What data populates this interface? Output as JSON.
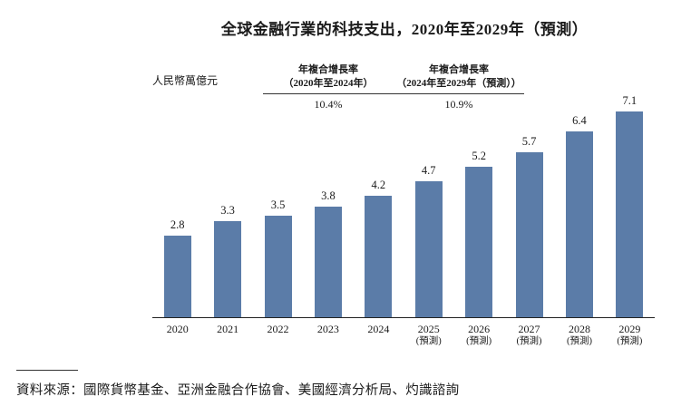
{
  "title": "全球金融行業的科技支出，2020年至2029年（預測）",
  "y_axis_unit": "人民幣萬億元",
  "cagr_annotations": [
    {
      "line1": "年複合增長率",
      "line2": "（2020年至2024年）",
      "value": "10.4%"
    },
    {
      "line1": "年複合增長率",
      "line2": "（2024年至2029年（預測））",
      "value": "10.9%"
    }
  ],
  "source_note": "資料來源：國際貨幣基金、亞洲金融合作協會、美國經濟分析局、灼識諮詢",
  "chart_data": {
    "type": "bar",
    "title": "全球金融行業的科技支出，2020年至2029年（預測）",
    "ylabel": "人民幣萬億元",
    "categories": [
      "2020",
      "2021",
      "2022",
      "2023",
      "2024",
      "2025",
      "2026",
      "2027",
      "2028",
      "2029"
    ],
    "category_sublabels": [
      "",
      "",
      "",
      "",
      "",
      "(預測)",
      "(預測)",
      "(預測)",
      "(預測)",
      "(預測)"
    ],
    "values": [
      2.8,
      3.3,
      3.5,
      3.8,
      4.2,
      4.7,
      5.2,
      5.7,
      6.4,
      7.1
    ],
    "ylim": [
      0,
      7.5
    ],
    "bar_color": "#5b7ca8",
    "grid": false,
    "legend": false,
    "annotations": [
      {
        "label": "年複合增長率（2020年至2024年）",
        "value": "10.4%"
      },
      {
        "label": "年複合增長率（2024年至2029年（預測））",
        "value": "10.9%"
      }
    ]
  }
}
